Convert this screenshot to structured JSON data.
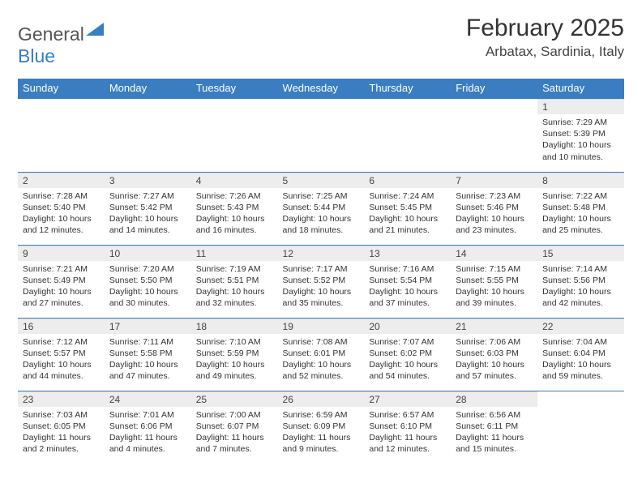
{
  "brand": {
    "part1": "General",
    "part2": "Blue"
  },
  "title": "February 2025",
  "location": "Arbatax, Sardinia, Italy",
  "colors": {
    "header_bg": "#3a7ec1",
    "header_text": "#ffffff",
    "daynum_bg": "#ededed",
    "cell_border": "#3a7ec1",
    "body_text": "#333333",
    "page_bg": "#ffffff"
  },
  "day_headers": [
    "Sunday",
    "Monday",
    "Tuesday",
    "Wednesday",
    "Thursday",
    "Friday",
    "Saturday"
  ],
  "layout": {
    "columns": 7,
    "rows": 5,
    "first_day_column": 6
  },
  "days": [
    {
      "n": 1,
      "sunrise": "7:29 AM",
      "sunset": "5:39 PM",
      "daylight": "10 hours and 10 minutes."
    },
    {
      "n": 2,
      "sunrise": "7:28 AM",
      "sunset": "5:40 PM",
      "daylight": "10 hours and 12 minutes."
    },
    {
      "n": 3,
      "sunrise": "7:27 AM",
      "sunset": "5:42 PM",
      "daylight": "10 hours and 14 minutes."
    },
    {
      "n": 4,
      "sunrise": "7:26 AM",
      "sunset": "5:43 PM",
      "daylight": "10 hours and 16 minutes."
    },
    {
      "n": 5,
      "sunrise": "7:25 AM",
      "sunset": "5:44 PM",
      "daylight": "10 hours and 18 minutes."
    },
    {
      "n": 6,
      "sunrise": "7:24 AM",
      "sunset": "5:45 PM",
      "daylight": "10 hours and 21 minutes."
    },
    {
      "n": 7,
      "sunrise": "7:23 AM",
      "sunset": "5:46 PM",
      "daylight": "10 hours and 23 minutes."
    },
    {
      "n": 8,
      "sunrise": "7:22 AM",
      "sunset": "5:48 PM",
      "daylight": "10 hours and 25 minutes."
    },
    {
      "n": 9,
      "sunrise": "7:21 AM",
      "sunset": "5:49 PM",
      "daylight": "10 hours and 27 minutes."
    },
    {
      "n": 10,
      "sunrise": "7:20 AM",
      "sunset": "5:50 PM",
      "daylight": "10 hours and 30 minutes."
    },
    {
      "n": 11,
      "sunrise": "7:19 AM",
      "sunset": "5:51 PM",
      "daylight": "10 hours and 32 minutes."
    },
    {
      "n": 12,
      "sunrise": "7:17 AM",
      "sunset": "5:52 PM",
      "daylight": "10 hours and 35 minutes."
    },
    {
      "n": 13,
      "sunrise": "7:16 AM",
      "sunset": "5:54 PM",
      "daylight": "10 hours and 37 minutes."
    },
    {
      "n": 14,
      "sunrise": "7:15 AM",
      "sunset": "5:55 PM",
      "daylight": "10 hours and 39 minutes."
    },
    {
      "n": 15,
      "sunrise": "7:14 AM",
      "sunset": "5:56 PM",
      "daylight": "10 hours and 42 minutes."
    },
    {
      "n": 16,
      "sunrise": "7:12 AM",
      "sunset": "5:57 PM",
      "daylight": "10 hours and 44 minutes."
    },
    {
      "n": 17,
      "sunrise": "7:11 AM",
      "sunset": "5:58 PM",
      "daylight": "10 hours and 47 minutes."
    },
    {
      "n": 18,
      "sunrise": "7:10 AM",
      "sunset": "5:59 PM",
      "daylight": "10 hours and 49 minutes."
    },
    {
      "n": 19,
      "sunrise": "7:08 AM",
      "sunset": "6:01 PM",
      "daylight": "10 hours and 52 minutes."
    },
    {
      "n": 20,
      "sunrise": "7:07 AM",
      "sunset": "6:02 PM",
      "daylight": "10 hours and 54 minutes."
    },
    {
      "n": 21,
      "sunrise": "7:06 AM",
      "sunset": "6:03 PM",
      "daylight": "10 hours and 57 minutes."
    },
    {
      "n": 22,
      "sunrise": "7:04 AM",
      "sunset": "6:04 PM",
      "daylight": "10 hours and 59 minutes."
    },
    {
      "n": 23,
      "sunrise": "7:03 AM",
      "sunset": "6:05 PM",
      "daylight": "11 hours and 2 minutes."
    },
    {
      "n": 24,
      "sunrise": "7:01 AM",
      "sunset": "6:06 PM",
      "daylight": "11 hours and 4 minutes."
    },
    {
      "n": 25,
      "sunrise": "7:00 AM",
      "sunset": "6:07 PM",
      "daylight": "11 hours and 7 minutes."
    },
    {
      "n": 26,
      "sunrise": "6:59 AM",
      "sunset": "6:09 PM",
      "daylight": "11 hours and 9 minutes."
    },
    {
      "n": 27,
      "sunrise": "6:57 AM",
      "sunset": "6:10 PM",
      "daylight": "11 hours and 12 minutes."
    },
    {
      "n": 28,
      "sunrise": "6:56 AM",
      "sunset": "6:11 PM",
      "daylight": "11 hours and 15 minutes."
    }
  ],
  "labels": {
    "sunrise": "Sunrise:",
    "sunset": "Sunset:",
    "daylight": "Daylight:"
  }
}
